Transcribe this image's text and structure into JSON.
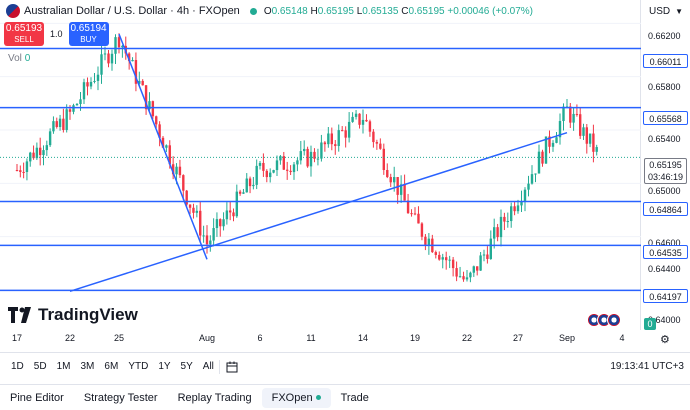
{
  "header": {
    "instrument": "Australian Dollar / U.S. Dollar · 4h · FXOpen",
    "ohlc": {
      "o_label": "O",
      "o": "0.65148",
      "h_label": "H",
      "h": "0.65195",
      "l_label": "L",
      "l": "0.65135",
      "c_label": "C",
      "c": "0.65195",
      "change": "+0.00046 (+0.07%)"
    },
    "currency": "USD"
  },
  "trade": {
    "sell_price": "0.65193",
    "sell_label": "SELL",
    "spread": "1.0",
    "buy_price": "0.65194",
    "buy_label": "BUY"
  },
  "volume": {
    "label": "Vol",
    "value": "0",
    "axis_value": "0"
  },
  "watermark": "TradingView",
  "price_axis": {
    "ticks": [
      "0.66200",
      "0.65800",
      "0.65400",
      "0.65000",
      "0.64600",
      "0.64400",
      "0.64000"
    ],
    "levels": [
      "0.66011",
      "0.65568",
      "0.64864",
      "0.64535",
      "0.64197"
    ],
    "current_price": "0.65195",
    "countdown": "03:46:19"
  },
  "time_axis": [
    "17",
    "22",
    "25",
    "Aug",
    "6",
    "11",
    "14",
    "19",
    "22",
    "27",
    "Sep",
    "4"
  ],
  "range_buttons": [
    "1D",
    "5D",
    "1M",
    "3M",
    "6M",
    "YTD",
    "1Y",
    "5Y",
    "All"
  ],
  "clock": "19:13:41 UTC+3",
  "bottom_tabs": [
    "Pine Editor",
    "Strategy Tester",
    "Replay Trading",
    "FXOpen",
    "Trade"
  ],
  "colors": {
    "up": "#22ab94",
    "down": "#f23645",
    "line": "#2962ff"
  },
  "chart_data": {
    "type": "candlestick",
    "title": "Australian Dollar / U.S. Dollar · 4h · FXOpen",
    "ylim": [
      0.639,
      0.663
    ],
    "horizontal_levels": [
      0.66011,
      0.65568,
      0.64864,
      0.64535,
      0.64197
    ],
    "trend_lines": [
      {
        "from": [
          "25",
          0.6612
        ],
        "to": [
          "Aug",
          0.6443
        ]
      },
      {
        "from": [
          "22",
          0.6419
        ],
        "to": [
          "Sep",
          0.6538
        ]
      }
    ],
    "anchors": [
      {
        "x": "17",
        "close": 0.651
      },
      {
        "x": "22",
        "close": 0.6552
      },
      {
        "x": "25",
        "close": 0.661
      },
      {
        "x": "Aug",
        "close": 0.6455
      },
      {
        "x": "6",
        "close": 0.651
      },
      {
        "x": "11",
        "close": 0.652
      },
      {
        "x": "14",
        "close": 0.655
      },
      {
        "x": "19",
        "close": 0.647
      },
      {
        "x": "22",
        "close": 0.6425
      },
      {
        "x": "27",
        "close": 0.649
      },
      {
        "x": "Sep",
        "close": 0.6555
      },
      {
        "x": "4",
        "close": 0.65195
      }
    ]
  }
}
